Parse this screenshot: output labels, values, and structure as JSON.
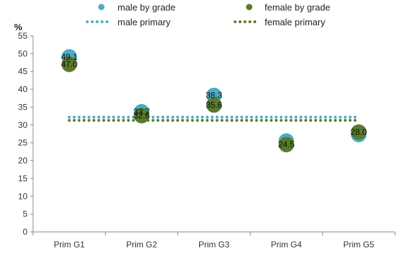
{
  "chart_data": {
    "type": "scatter",
    "y_unit": "%",
    "categories": [
      "Prim G1",
      "Prim G2",
      "Prim G3",
      "Prim G4",
      "Prim G5"
    ],
    "ylim": [
      0,
      55
    ],
    "ytick_step": 5,
    "grid": false,
    "legend_position": "top",
    "series": [
      {
        "name": "male by grade",
        "kind": "points",
        "color": "#4bacc6",
        "values": [
          49.1,
          33.7,
          38.3,
          25.5,
          27.3
        ],
        "labels": [
          "49.1",
          "33.7",
          "38.3",
          "",
          ""
        ]
      },
      {
        "name": "female by grade",
        "kind": "points",
        "color": "#5a7a2b",
        "values": [
          47.0,
          32.6,
          35.6,
          24.5,
          28.0
        ],
        "labels": [
          "47.0",
          "32.6",
          "35.6",
          "24.5",
          "28.0"
        ]
      },
      {
        "name": "male primary",
        "kind": "dotted-line",
        "color": "#4bacc6",
        "value": 32.2
      },
      {
        "name": "female primary",
        "kind": "dotted-line",
        "color": "#5a7a2b",
        "value": 31.3
      }
    ]
  }
}
